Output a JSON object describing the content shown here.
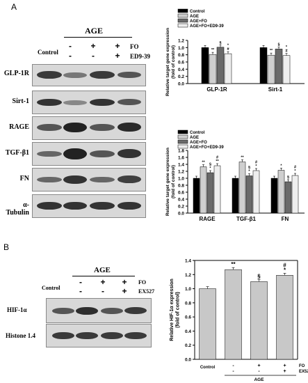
{
  "panel_a": {
    "letter": "A",
    "treatment_header": "AGE",
    "control_label": "Control",
    "fo_label": "FO",
    "ed_label": "ED9-39",
    "fo_signs": [
      "-",
      "+",
      "+"
    ],
    "ed_signs": [
      "-",
      "-",
      "+"
    ],
    "blots": [
      "GLP-1R",
      "Sirt-1",
      "RAGE",
      "TGF-β1",
      "FN",
      "α-Tubulin"
    ]
  },
  "panel_b": {
    "letter": "B",
    "treatment_header": "AGE",
    "control_label": "Control",
    "fo_label": "FO",
    "ex_label": "EX527",
    "fo_signs": [
      "-",
      "+",
      "+"
    ],
    "ex_signs": [
      "-",
      "-",
      "+"
    ],
    "blots": [
      "HIF-1α",
      "Histone 1.4"
    ]
  },
  "chart_data": [
    {
      "type": "bar",
      "ylabel": "Relative target gene expression (fold of control)",
      "ylim": [
        0,
        1.2
      ],
      "yticks": [
        "0.0",
        "0.2",
        "0.4",
        "0.6",
        "0.8",
        "1.0",
        "1.2"
      ],
      "categories": [
        "GLP-1R",
        "Sirt-1"
      ],
      "legend_position": "top-left",
      "series": [
        {
          "name": "Control",
          "color": "#000000",
          "values": [
            1.0,
            1.0
          ],
          "marks": [
            "",
            ""
          ]
        },
        {
          "name": "AGE",
          "color": "#cfcfcf",
          "values": [
            0.81,
            0.79
          ],
          "marks": [
            "**",
            "**"
          ]
        },
        {
          "name": "AGE+FO",
          "color": "#6a6a6a",
          "values": [
            1.01,
            0.96
          ],
          "marks": [
            "§",
            "§"
          ]
        },
        {
          "name": "AGE+FO+ED9-39",
          "color": "#eeeeee",
          "values": [
            0.83,
            0.78
          ],
          "marks": [
            "*\n#",
            "*\n#"
          ]
        }
      ]
    },
    {
      "type": "bar",
      "ylabel": "Relative target gene expression (fold of control)",
      "ylim": [
        0,
        1.8
      ],
      "yticks": [
        "0.0",
        "0.2",
        "0.4",
        "0.6",
        "0.8",
        "1.0",
        "1.2",
        "1.4",
        "1.6",
        "1.8"
      ],
      "categories": [
        "RAGE",
        "TGF-β1",
        "FN"
      ],
      "legend_position": "top-left",
      "series": [
        {
          "name": "Control",
          "color": "#000000",
          "values": [
            1.0,
            1.0,
            1.0
          ],
          "marks": [
            "",
            "",
            ""
          ]
        },
        {
          "name": "AGE",
          "color": "#cfcfcf",
          "values": [
            1.33,
            1.47,
            1.23
          ],
          "marks": [
            "**",
            "**",
            "*"
          ]
        },
        {
          "name": "AGE+FO",
          "color": "#6a6a6a",
          "values": [
            1.16,
            1.07,
            0.9
          ],
          "marks": [
            "§\n*",
            "§\n*",
            "§"
          ]
        },
        {
          "name": "AGE+FO+ED9-39",
          "color": "#eeeeee",
          "values": [
            1.36,
            1.22,
            1.08
          ],
          "marks": [
            "#\n**",
            "#\n*",
            "#\n*"
          ]
        }
      ]
    },
    {
      "type": "bar",
      "ylabel": "Relative HIF-1α expression (fold of control)",
      "ylim": [
        0,
        1.4
      ],
      "yticks": [
        "0.0",
        "0.2",
        "0.4",
        "0.6",
        "0.8",
        "1.0",
        "1.2",
        "1.4"
      ],
      "categories": [
        "Control",
        "AGE",
        "AGE+FO",
        "AGE+FO+EX527"
      ],
      "values": [
        1.0,
        1.27,
        1.1,
        1.19
      ],
      "marks": [
        "",
        "**",
        "§",
        "#\n*"
      ],
      "fo_label": "FO",
      "ex_label": "EX527",
      "control_label": "Control",
      "fo_signs": [
        "-",
        "+",
        "+"
      ],
      "ex_signs": [
        "-",
        "-",
        "+"
      ],
      "group_label": "AGE"
    }
  ]
}
